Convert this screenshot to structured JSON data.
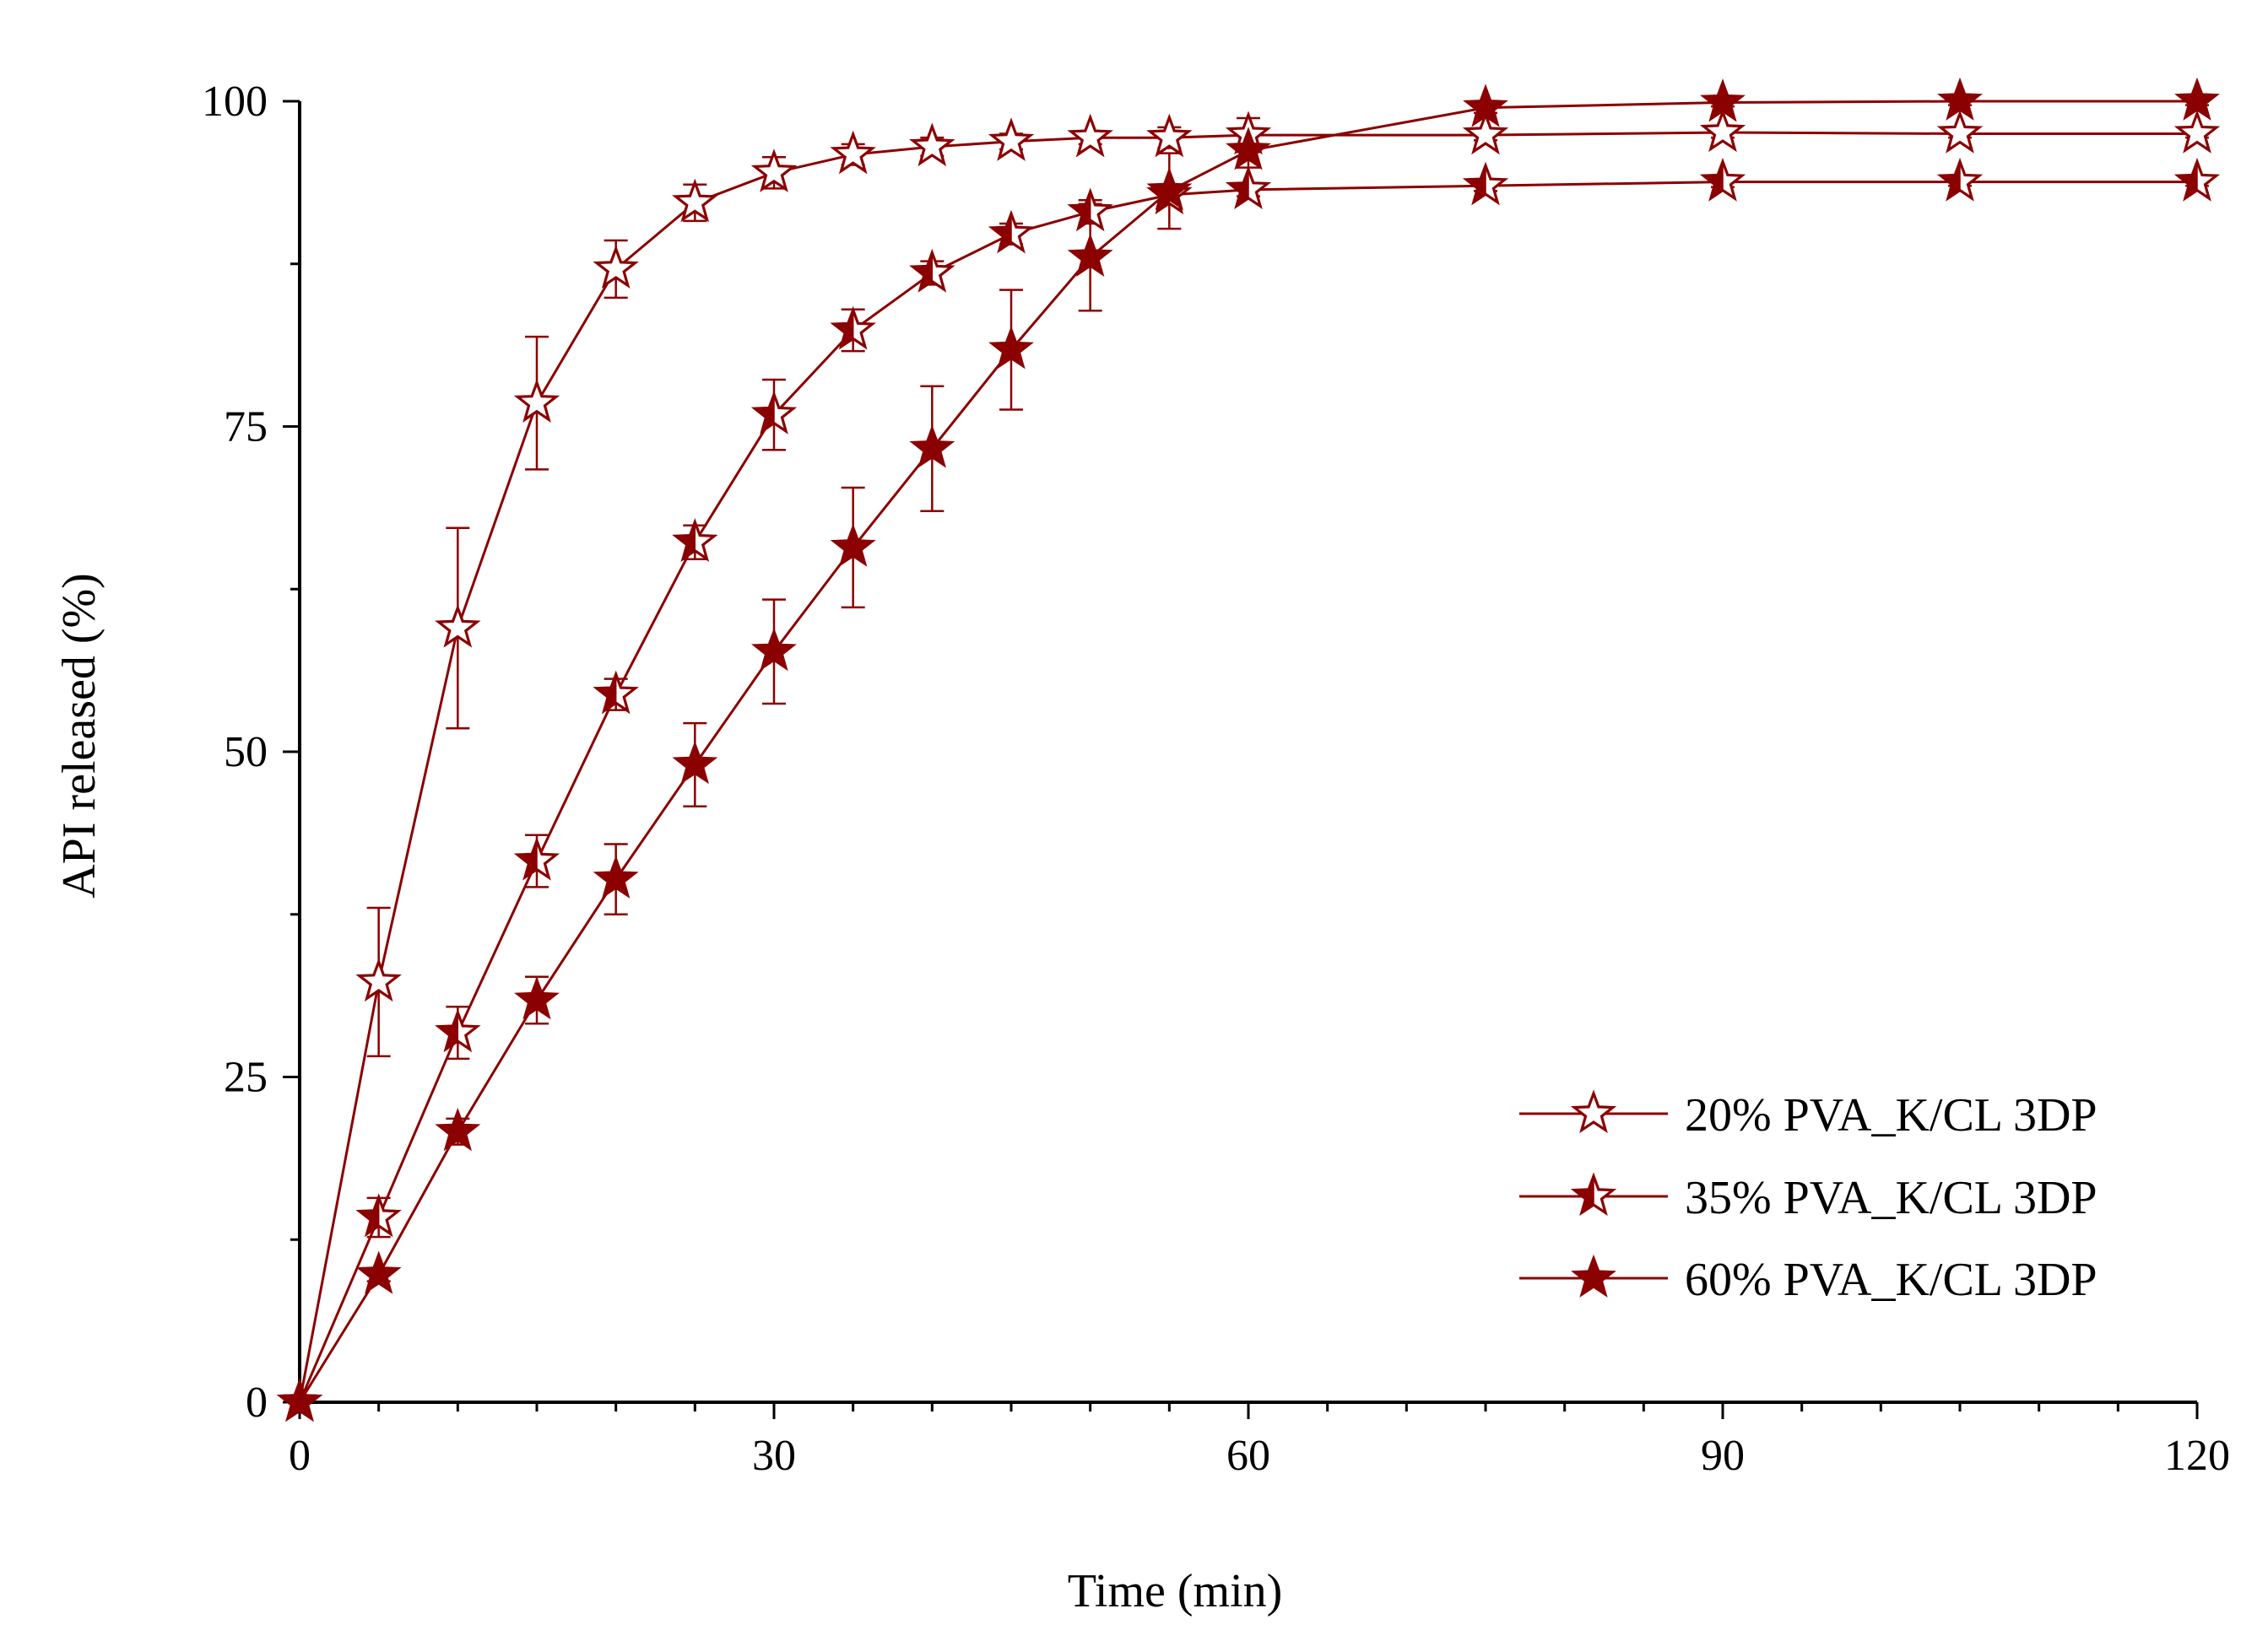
{
  "chart_data": {
    "type": "line",
    "title": "",
    "xlabel": "Time (min)",
    "ylabel": "API released (%)",
    "xlim": [
      0,
      120
    ],
    "ylim": [
      0,
      100
    ],
    "xticks": [
      0,
      30,
      60,
      90,
      120
    ],
    "yticks": [
      0,
      25,
      50,
      75,
      100
    ],
    "grid": false,
    "legend_position": "bottom-right",
    "colors": {
      "series": "#8b0000",
      "axis": "#000000"
    },
    "series": [
      {
        "name": "20% PVA_K/CL 3DP",
        "marker": "star-open",
        "x": [
          0,
          5,
          10,
          15,
          20,
          25,
          30,
          35,
          40,
          45,
          50,
          55,
          60,
          75,
          90,
          105,
          120
        ],
        "y": [
          0,
          32.3,
          59.5,
          76.8,
          87.1,
          92.2,
          94.5,
          95.9,
          96.5,
          96.9,
          97.2,
          97.2,
          97.4,
          97.4,
          97.6,
          97.5,
          97.5
        ],
        "err": [
          0,
          5.7,
          7.7,
          5.1,
          2.2,
          1.4,
          1.2,
          0.8,
          0.7,
          0.6,
          0.5,
          0.8,
          1.3,
          0.4,
          0.4,
          0.3,
          0.3
        ]
      },
      {
        "name": "35% PVA_K/CL 3DP",
        "marker": "star-half",
        "x": [
          0,
          5,
          10,
          15,
          20,
          25,
          30,
          35,
          40,
          45,
          50,
          55,
          60,
          75,
          90,
          105,
          120
        ],
        "y": [
          0,
          14.2,
          28.4,
          41.6,
          54.4,
          66.1,
          75.9,
          82.4,
          86.8,
          89.8,
          91.5,
          92.8,
          93.2,
          93.5,
          93.8,
          93.8,
          93.8
        ],
        "err": [
          0,
          1.5,
          2.0,
          2.0,
          1.2,
          1.3,
          2.7,
          1.6,
          0.9,
          0.8,
          0.9,
          0.6,
          0.5,
          0.4,
          0.4,
          0.3,
          0.3
        ]
      },
      {
        "name": "60% PVA_K/CL 3DP",
        "marker": "star-filled",
        "x": [
          0,
          5,
          10,
          15,
          20,
          25,
          30,
          35,
          40,
          45,
          50,
          55,
          60,
          75,
          90,
          105,
          120
        ],
        "y": [
          0,
          9.8,
          20.8,
          30.9,
          40.2,
          49.0,
          57.7,
          65.7,
          73.3,
          80.9,
          88.0,
          93.1,
          96.2,
          99.5,
          99.9,
          100.0,
          100.0
        ],
        "err": [
          0,
          0.5,
          1.0,
          1.8,
          2.7,
          3.2,
          4.0,
          4.6,
          4.8,
          4.6,
          4.1,
          2.9,
          1.3,
          0.4,
          0.3,
          0.3,
          0.3
        ]
      }
    ]
  }
}
